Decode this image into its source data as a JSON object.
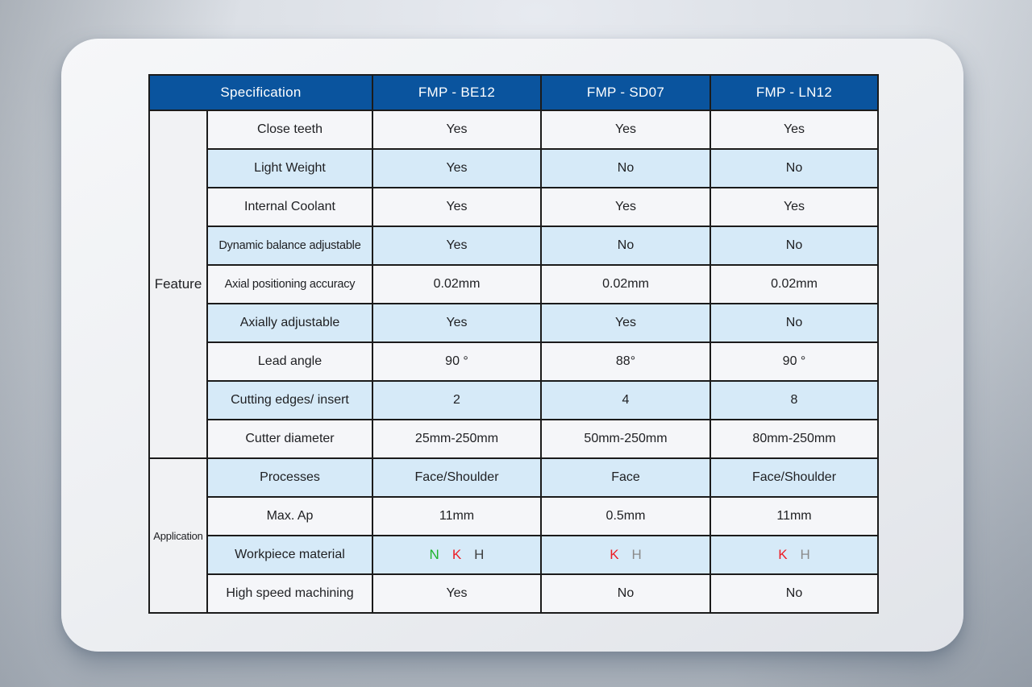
{
  "colors": {
    "header_bg": "#0a549e",
    "header_text": "#ffffff",
    "row_light": "#f5f6f9",
    "row_blue": "#d6eaf8",
    "group_bg": "#f1f2f4",
    "border": "#1b1b1b",
    "text": "#202124",
    "green": "#1fb32c",
    "red": "#ed1c24",
    "dark": "#3f4040",
    "gray": "#8a8a8a"
  },
  "table": {
    "columns": [
      "Specification",
      "FMP - BE12",
      "FMP - SD07",
      "FMP - LN12"
    ],
    "groups": [
      {
        "label": "Feature",
        "rows": [
          {
            "label": "Close teeth",
            "values": [
              "Yes",
              "Yes",
              "Yes"
            ]
          },
          {
            "label": "Light Weight",
            "values": [
              "Yes",
              "No",
              "No"
            ]
          },
          {
            "label": "Internal Coolant",
            "values": [
              "Yes",
              "Yes",
              "Yes"
            ]
          },
          {
            "label": "Dynamic balance adjustable",
            "values": [
              "Yes",
              "No",
              "No"
            ]
          },
          {
            "label": "Axial positioning accuracy",
            "values": [
              "0.02mm",
              "0.02mm",
              "0.02mm"
            ]
          },
          {
            "label": "Axially adjustable",
            "values": [
              "Yes",
              "Yes",
              "No"
            ]
          },
          {
            "label": "Lead angle",
            "values": [
              "90 °",
              "88°",
              "90 °"
            ]
          },
          {
            "label": "Cutting edges/ insert",
            "values": [
              "2",
              "4",
              "8"
            ]
          },
          {
            "label": "Cutter diameter",
            "values": [
              "25mm-250mm",
              "50mm-250mm",
              "80mm-250mm"
            ]
          }
        ]
      },
      {
        "label": "Application",
        "rows": [
          {
            "label": "Processes",
            "values": [
              "Face/Shoulder",
              "Face",
              "Face/Shoulder"
            ]
          },
          {
            "label": "Max. Ap",
            "values": [
              "11mm",
              "0.5mm",
              "11mm"
            ]
          },
          {
            "label": "Workpiece material",
            "values": [
              [
                {
                  "t": "N",
                  "c": "green"
                },
                {
                  "t": "K",
                  "c": "red"
                },
                {
                  "t": "H",
                  "c": "dark"
                }
              ],
              [
                {
                  "t": "K",
                  "c": "red"
                },
                {
                  "t": "H",
                  "c": "gray"
                }
              ],
              [
                {
                  "t": "K",
                  "c": "red"
                },
                {
                  "t": "H",
                  "c": "gray"
                }
              ]
            ]
          },
          {
            "label": "High speed machining",
            "values": [
              "Yes",
              "No",
              "No"
            ]
          }
        ]
      }
    ]
  }
}
